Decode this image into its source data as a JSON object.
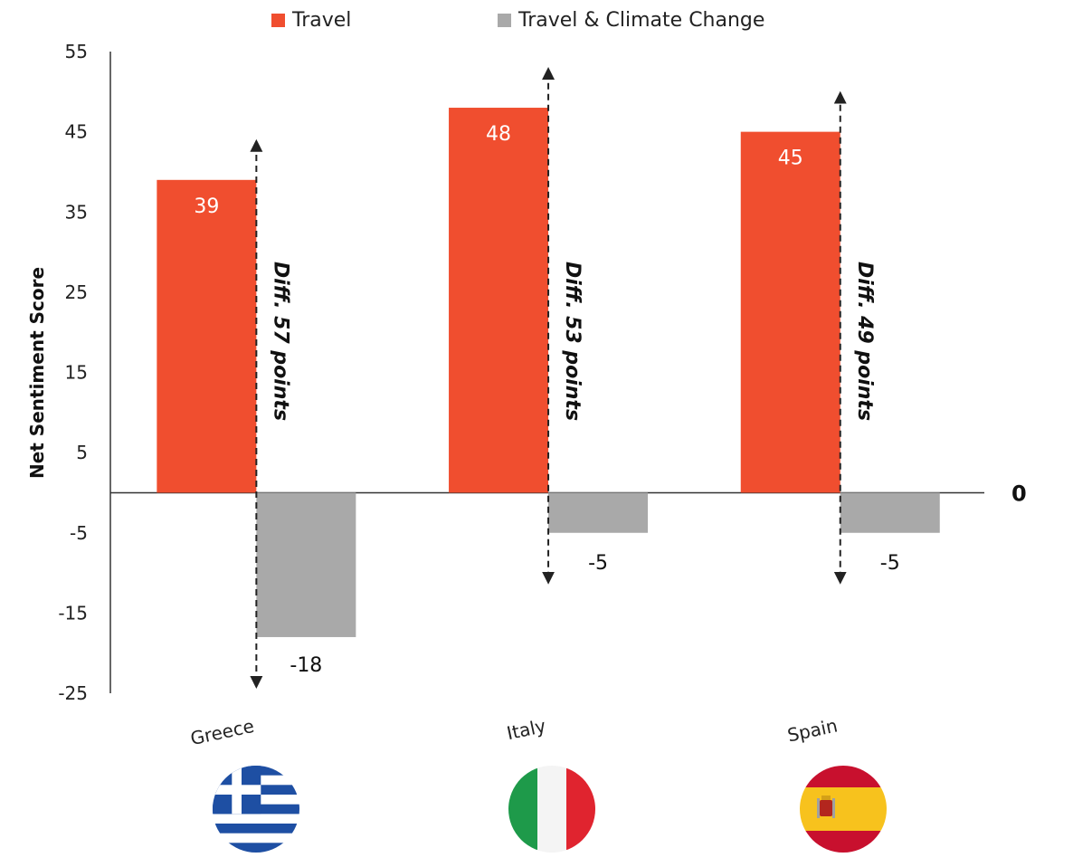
{
  "legend": {
    "series1": {
      "label": "Travel",
      "color": "#f04e2f"
    },
    "series2": {
      "label": "Travel & Climate Change",
      "color": "#a9a9a9"
    }
  },
  "chart_data": {
    "type": "bar",
    "categories": [
      "Greece",
      "Italy",
      "Spain"
    ],
    "series": [
      {
        "name": "Travel",
        "values": [
          39,
          48,
          45
        ],
        "color": "#f04e2f"
      },
      {
        "name": "Travel & Climate Change",
        "values": [
          -18,
          -5,
          -5
        ],
        "color": "#a9a9a9"
      }
    ],
    "ylabel": "Net Sentiment Score",
    "ylim": [
      -25,
      55
    ],
    "yticks": [
      "55",
      "45",
      "35",
      "25",
      "15",
      "5",
      "-5",
      "-15",
      "-25"
    ],
    "zero_label": "0",
    "data_labels": {
      "series1": [
        "39",
        "48",
        "45"
      ],
      "series2": [
        "-18",
        "-5",
        "-5"
      ]
    },
    "annotations": [
      "Diff. 57 points",
      "Diff. 53 points",
      "Diff. 49 points"
    ],
    "legend_position": "top"
  },
  "flags": [
    {
      "icon": "greece-flag-icon"
    },
    {
      "icon": "italy-flag-icon"
    },
    {
      "icon": "spain-flag-icon"
    }
  ]
}
